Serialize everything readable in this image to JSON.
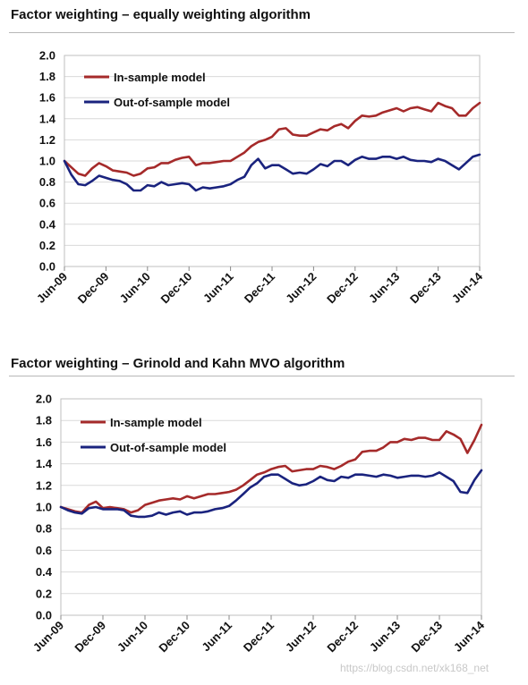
{
  "chart_data": [
    {
      "type": "line",
      "title": "Factor weighting – equally weighting algorithm",
      "xlabel": "",
      "ylabel": "",
      "ylim": [
        0,
        2.0
      ],
      "yticks": [
        "2.0",
        "1.8",
        "1.6",
        "1.4",
        "1.2",
        "1.0",
        "0.8",
        "0.6",
        "0.4",
        "0.2",
        "0.0"
      ],
      "xticks": [
        "Jun-09",
        "Dec-09",
        "Jun-10",
        "Dec-10",
        "Jun-11",
        "Dec-11",
        "Jun-12",
        "Dec-12",
        "Jun-13",
        "Dec-13",
        "Jun-14"
      ],
      "x": [
        0,
        1,
        2,
        3,
        4,
        5,
        6,
        7,
        8,
        9,
        10,
        11,
        12,
        13,
        14,
        15,
        16,
        17,
        18,
        19,
        20,
        21,
        22,
        23,
        24,
        25,
        26,
        27,
        28,
        29,
        30,
        31,
        32,
        33,
        34,
        35,
        36,
        37,
        38,
        39,
        40,
        41,
        42,
        43,
        44,
        45,
        46,
        47,
        48,
        49,
        50,
        51,
        52,
        53,
        54,
        55,
        56,
        57,
        58,
        59,
        60
      ],
      "series": [
        {
          "name": "In-sample model",
          "color": "#a52a2a",
          "values": [
            1.0,
            0.94,
            0.88,
            0.86,
            0.93,
            0.98,
            0.95,
            0.91,
            0.9,
            0.89,
            0.86,
            0.88,
            0.93,
            0.94,
            0.98,
            0.98,
            1.01,
            1.03,
            1.04,
            0.96,
            0.98,
            0.98,
            0.99,
            1.0,
            1.0,
            1.04,
            1.08,
            1.14,
            1.18,
            1.2,
            1.23,
            1.3,
            1.31,
            1.25,
            1.24,
            1.24,
            1.27,
            1.3,
            1.29,
            1.33,
            1.35,
            1.31,
            1.38,
            1.43,
            1.42,
            1.43,
            1.46,
            1.48,
            1.5,
            1.47,
            1.5,
            1.51,
            1.49,
            1.47,
            1.55,
            1.52,
            1.5,
            1.43,
            1.43,
            1.5,
            1.55
          ]
        },
        {
          "name": "Out-of-sample model",
          "color": "#1a237e",
          "values": [
            1.0,
            0.87,
            0.78,
            0.77,
            0.81,
            0.86,
            0.84,
            0.82,
            0.81,
            0.78,
            0.72,
            0.72,
            0.77,
            0.76,
            0.8,
            0.77,
            0.78,
            0.79,
            0.78,
            0.72,
            0.75,
            0.74,
            0.75,
            0.76,
            0.78,
            0.82,
            0.85,
            0.96,
            1.02,
            0.93,
            0.96,
            0.96,
            0.92,
            0.88,
            0.89,
            0.88,
            0.92,
            0.97,
            0.95,
            1.0,
            1.0,
            0.96,
            1.01,
            1.04,
            1.02,
            1.02,
            1.04,
            1.04,
            1.02,
            1.04,
            1.01,
            1.0,
            1.0,
            0.99,
            1.02,
            1.0,
            0.96,
            0.92,
            0.98,
            1.04,
            1.06
          ]
        }
      ],
      "grid": true,
      "legend_position": "top-left"
    },
    {
      "type": "line",
      "title": "Factor weighting – Grinold and Kahn MVO algorithm",
      "xlabel": "",
      "ylabel": "",
      "ylim": [
        0,
        2.0
      ],
      "yticks": [
        "2.0",
        "1.8",
        "1.6",
        "1.4",
        "1.2",
        "1.0",
        "0.8",
        "0.6",
        "0.4",
        "0.2",
        "0.0"
      ],
      "xticks": [
        "Jun-09",
        "Dec-09",
        "Jun-10",
        "Dec-10",
        "Jun-11",
        "Dec-11",
        "Jun-12",
        "Dec-12",
        "Jun-13",
        "Dec-13",
        "Jun-14"
      ],
      "x": [
        0,
        1,
        2,
        3,
        4,
        5,
        6,
        7,
        8,
        9,
        10,
        11,
        12,
        13,
        14,
        15,
        16,
        17,
        18,
        19,
        20,
        21,
        22,
        23,
        24,
        25,
        26,
        27,
        28,
        29,
        30,
        31,
        32,
        33,
        34,
        35,
        36,
        37,
        38,
        39,
        40,
        41,
        42,
        43,
        44,
        45,
        46,
        47,
        48,
        49,
        50,
        51,
        52,
        53,
        54,
        55,
        56,
        57,
        58,
        59,
        60
      ],
      "series": [
        {
          "name": "In-sample model",
          "color": "#a52a2a",
          "values": [
            1.0,
            0.98,
            0.96,
            0.95,
            1.02,
            1.05,
            0.99,
            1.0,
            0.99,
            0.98,
            0.95,
            0.97,
            1.02,
            1.04,
            1.06,
            1.07,
            1.08,
            1.07,
            1.1,
            1.08,
            1.1,
            1.12,
            1.12,
            1.13,
            1.14,
            1.16,
            1.2,
            1.25,
            1.3,
            1.32,
            1.35,
            1.37,
            1.38,
            1.33,
            1.34,
            1.35,
            1.35,
            1.38,
            1.37,
            1.35,
            1.38,
            1.42,
            1.44,
            1.51,
            1.52,
            1.52,
            1.55,
            1.6,
            1.6,
            1.63,
            1.62,
            1.64,
            1.64,
            1.62,
            1.62,
            1.7,
            1.67,
            1.63,
            1.5,
            1.62,
            1.76
          ]
        },
        {
          "name": "Out-of-sample model",
          "color": "#1a237e",
          "values": [
            1.0,
            0.97,
            0.95,
            0.94,
            0.99,
            1.0,
            0.98,
            0.98,
            0.98,
            0.97,
            0.92,
            0.91,
            0.91,
            0.92,
            0.95,
            0.93,
            0.95,
            0.96,
            0.93,
            0.95,
            0.95,
            0.96,
            0.98,
            0.99,
            1.01,
            1.06,
            1.12,
            1.18,
            1.22,
            1.28,
            1.3,
            1.3,
            1.26,
            1.22,
            1.2,
            1.21,
            1.24,
            1.28,
            1.25,
            1.24,
            1.28,
            1.27,
            1.3,
            1.3,
            1.29,
            1.28,
            1.3,
            1.29,
            1.27,
            1.28,
            1.29,
            1.29,
            1.28,
            1.29,
            1.32,
            1.28,
            1.24,
            1.14,
            1.13,
            1.25,
            1.34
          ]
        }
      ],
      "grid": true,
      "legend_position": "top-left"
    }
  ],
  "watermark": "https://blog.csdn.net/xk168_net"
}
